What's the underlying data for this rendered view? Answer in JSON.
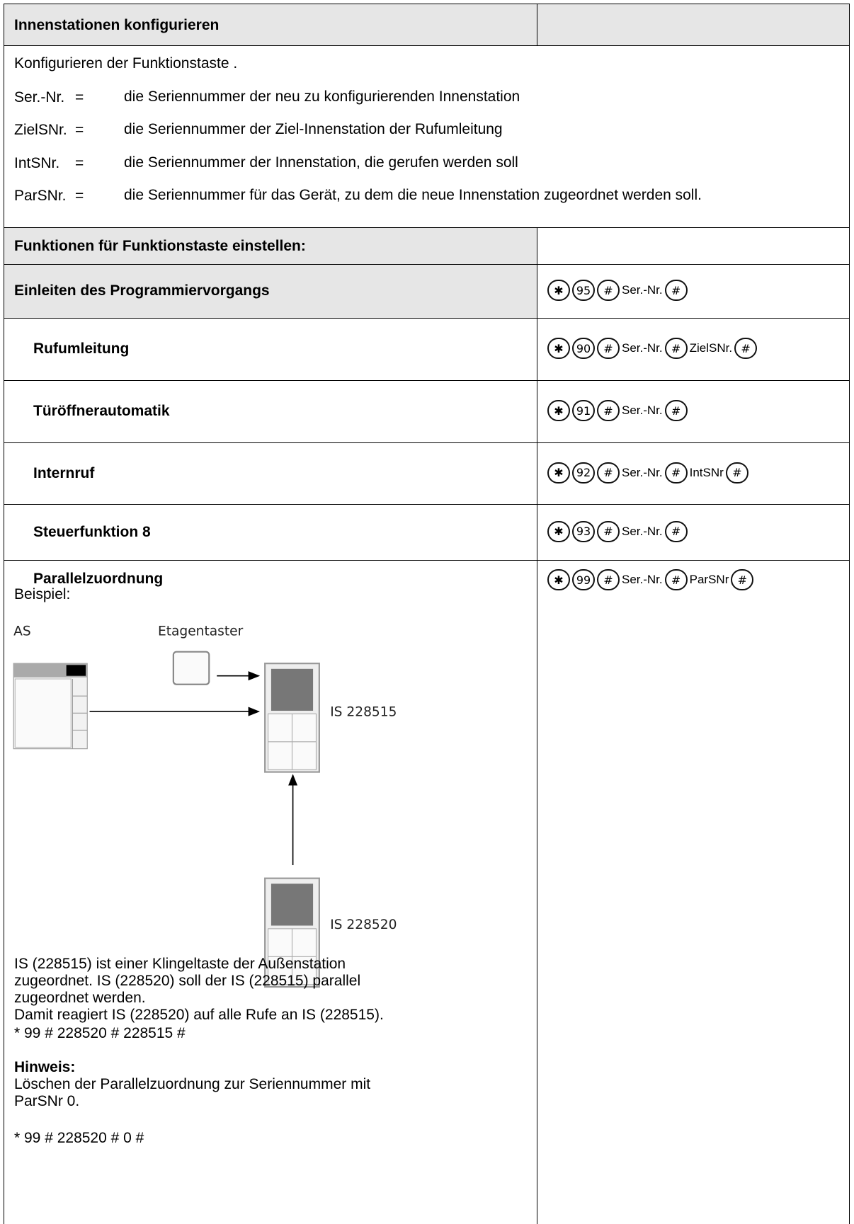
{
  "header": {
    "title": "Innenstationen konfigurieren"
  },
  "intro": {
    "text": "Konfigurieren der Funktionstaste .",
    "definitions": [
      {
        "term": "Ser.-Nr.",
        "sign": "=",
        "text": "die Seriennummer der neu zu konfigurierenden Innenstation"
      },
      {
        "term": "ZielSNr.",
        "sign": "=",
        "text": "die Seriennummer der Ziel-Innenstation der Rufumleitung"
      },
      {
        "term": "IntSNr.",
        "sign": "=",
        "text": "die Seriennummer der Innenstation, die gerufen werden soll"
      },
      {
        "term": "ParSNr.",
        "sign": "=",
        "text": "die Seriennummer für das Gerät, zu dem die neue Innenstation zugeordnet werden soll."
      }
    ]
  },
  "section": {
    "title": "Funktionen für Funktionstaste einstellen:"
  },
  "rows": [
    {
      "label": "Einleiten des Programmiervorgangs",
      "sequence": [
        {
          "circled": "✱"
        },
        {
          "circled": "95"
        },
        {
          "circled": "#"
        },
        {
          "text": "Ser.-Nr."
        },
        {
          "circled": "#"
        }
      ]
    },
    {
      "label": "Rufumleitung",
      "sequence": [
        {
          "circled": "✱"
        },
        {
          "circled": "90"
        },
        {
          "circled": "#"
        },
        {
          "text": "Ser.-Nr."
        },
        {
          "circled": "#"
        },
        {
          "text": "ZielSNr."
        },
        {
          "circled": "#"
        }
      ]
    },
    {
      "label": "Türöffnerautomatik",
      "sequence": [
        {
          "circled": "✱"
        },
        {
          "circled": "91"
        },
        {
          "circled": "#"
        },
        {
          "text": "Ser.-Nr."
        },
        {
          "circled": "#"
        }
      ]
    },
    {
      "label": "Internruf",
      "sequence": [
        {
          "circled": "✱"
        },
        {
          "circled": "92"
        },
        {
          "circled": "#"
        },
        {
          "text": "Ser.-Nr."
        },
        {
          "circled": "#"
        },
        {
          "text": "IntSNr"
        },
        {
          "circled": "#"
        }
      ]
    },
    {
      "label": "Steuerfunktion 8",
      "sequence": [
        {
          "circled": "✱"
        },
        {
          "circled": "93"
        },
        {
          "circled": "#"
        },
        {
          "text": "Ser.-Nr."
        },
        {
          "circled": "#"
        }
      ]
    },
    {
      "label": "Parallelzuordnung",
      "sequence": [
        {
          "circled": "✱"
        },
        {
          "circled": "99"
        },
        {
          "circled": "#"
        },
        {
          "text": "Ser.-Nr."
        },
        {
          "circled": "#"
        },
        {
          "text": "ParSNr"
        },
        {
          "circled": "#"
        }
      ]
    }
  ],
  "example": {
    "label": "Beispiel:",
    "diagram": {
      "outdoor": "AS",
      "button": "Etagentaster",
      "station1": "IS 228515",
      "station2": "IS 228520"
    },
    "description": [
      "IS (228515) ist einer Klingeltaste der Außenstation",
      "zugeordnet. IS (228520) soll der IS (228515) parallel",
      "zugeordnet werden.",
      "Damit reagiert IS (228520) auf alle Rufe an IS (228515)."
    ],
    "code": "* 99 # 228520 # 228515 #",
    "note": {
      "title": "Hinweis:",
      "lines": [
        "Löschen der Parallelzuordnung zur Seriennummer mit",
        "ParSNr 0."
      ],
      "code": "* 99 # 228520 # 0 #"
    }
  }
}
